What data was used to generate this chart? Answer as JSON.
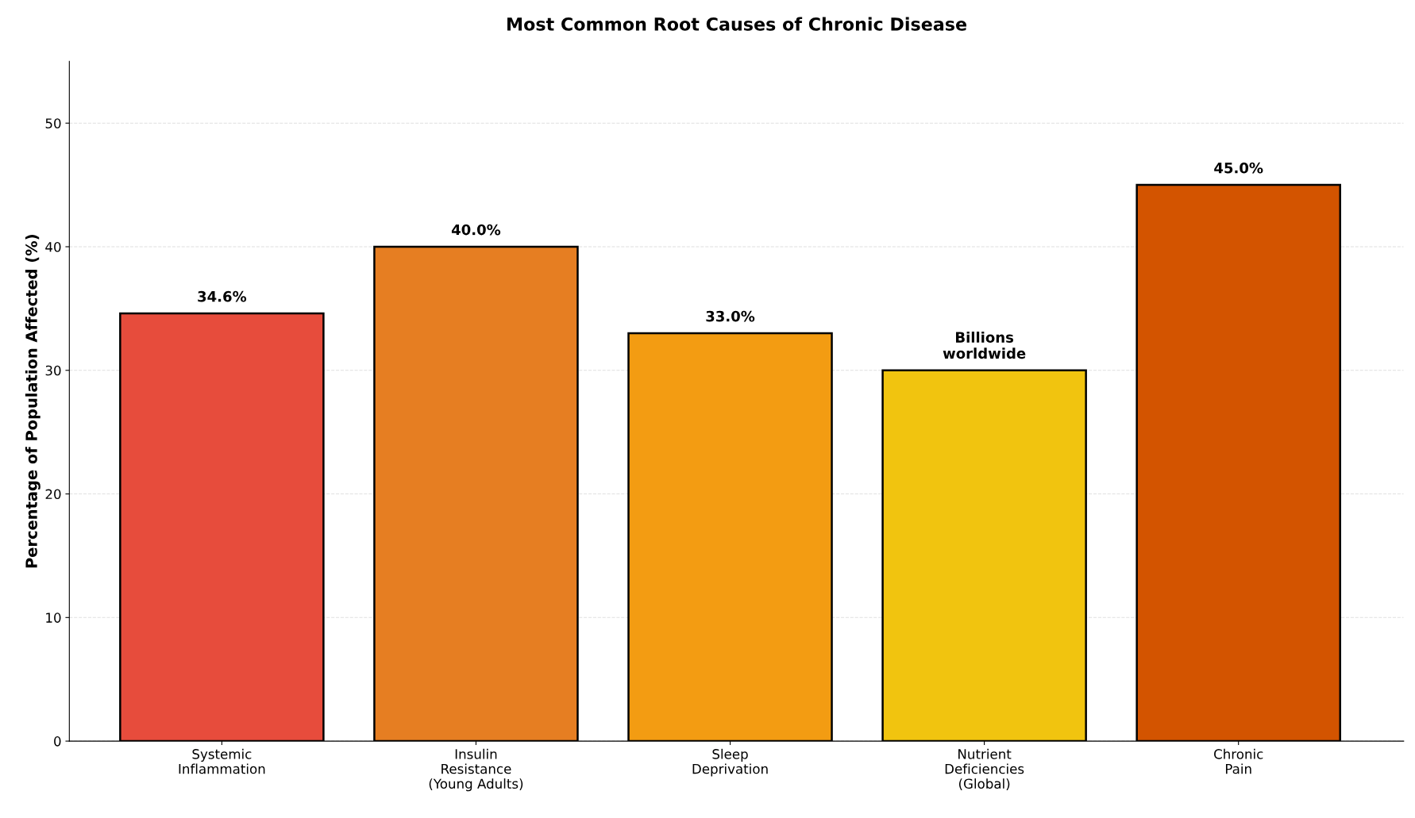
{
  "chart_data": {
    "type": "bar",
    "title": "Most Common Root Causes of Chronic Disease",
    "ylabel": "Percentage of Population Affected (%)",
    "categories": [
      "Systemic\nInflammation",
      "Insulin\nResistance\n(Young Adults)",
      "Sleep\nDeprivation",
      "Nutrient\nDeficiencies\n(Global)",
      "Chronic\nPain"
    ],
    "values": [
      34.6,
      40.0,
      33.0,
      30.0,
      45.0
    ],
    "colors": [
      "#e74c3c",
      "#e67e22",
      "#f39c12",
      "#f1c40f",
      "#d35400"
    ],
    "value_labels": [
      "34.6%",
      "40.0%",
      "33.0%",
      "Billions\nworldwide",
      "45.0%"
    ],
    "ylim": [
      0,
      55
    ],
    "yticks": [
      0,
      10,
      20,
      30,
      40,
      50
    ],
    "grid": "y"
  }
}
